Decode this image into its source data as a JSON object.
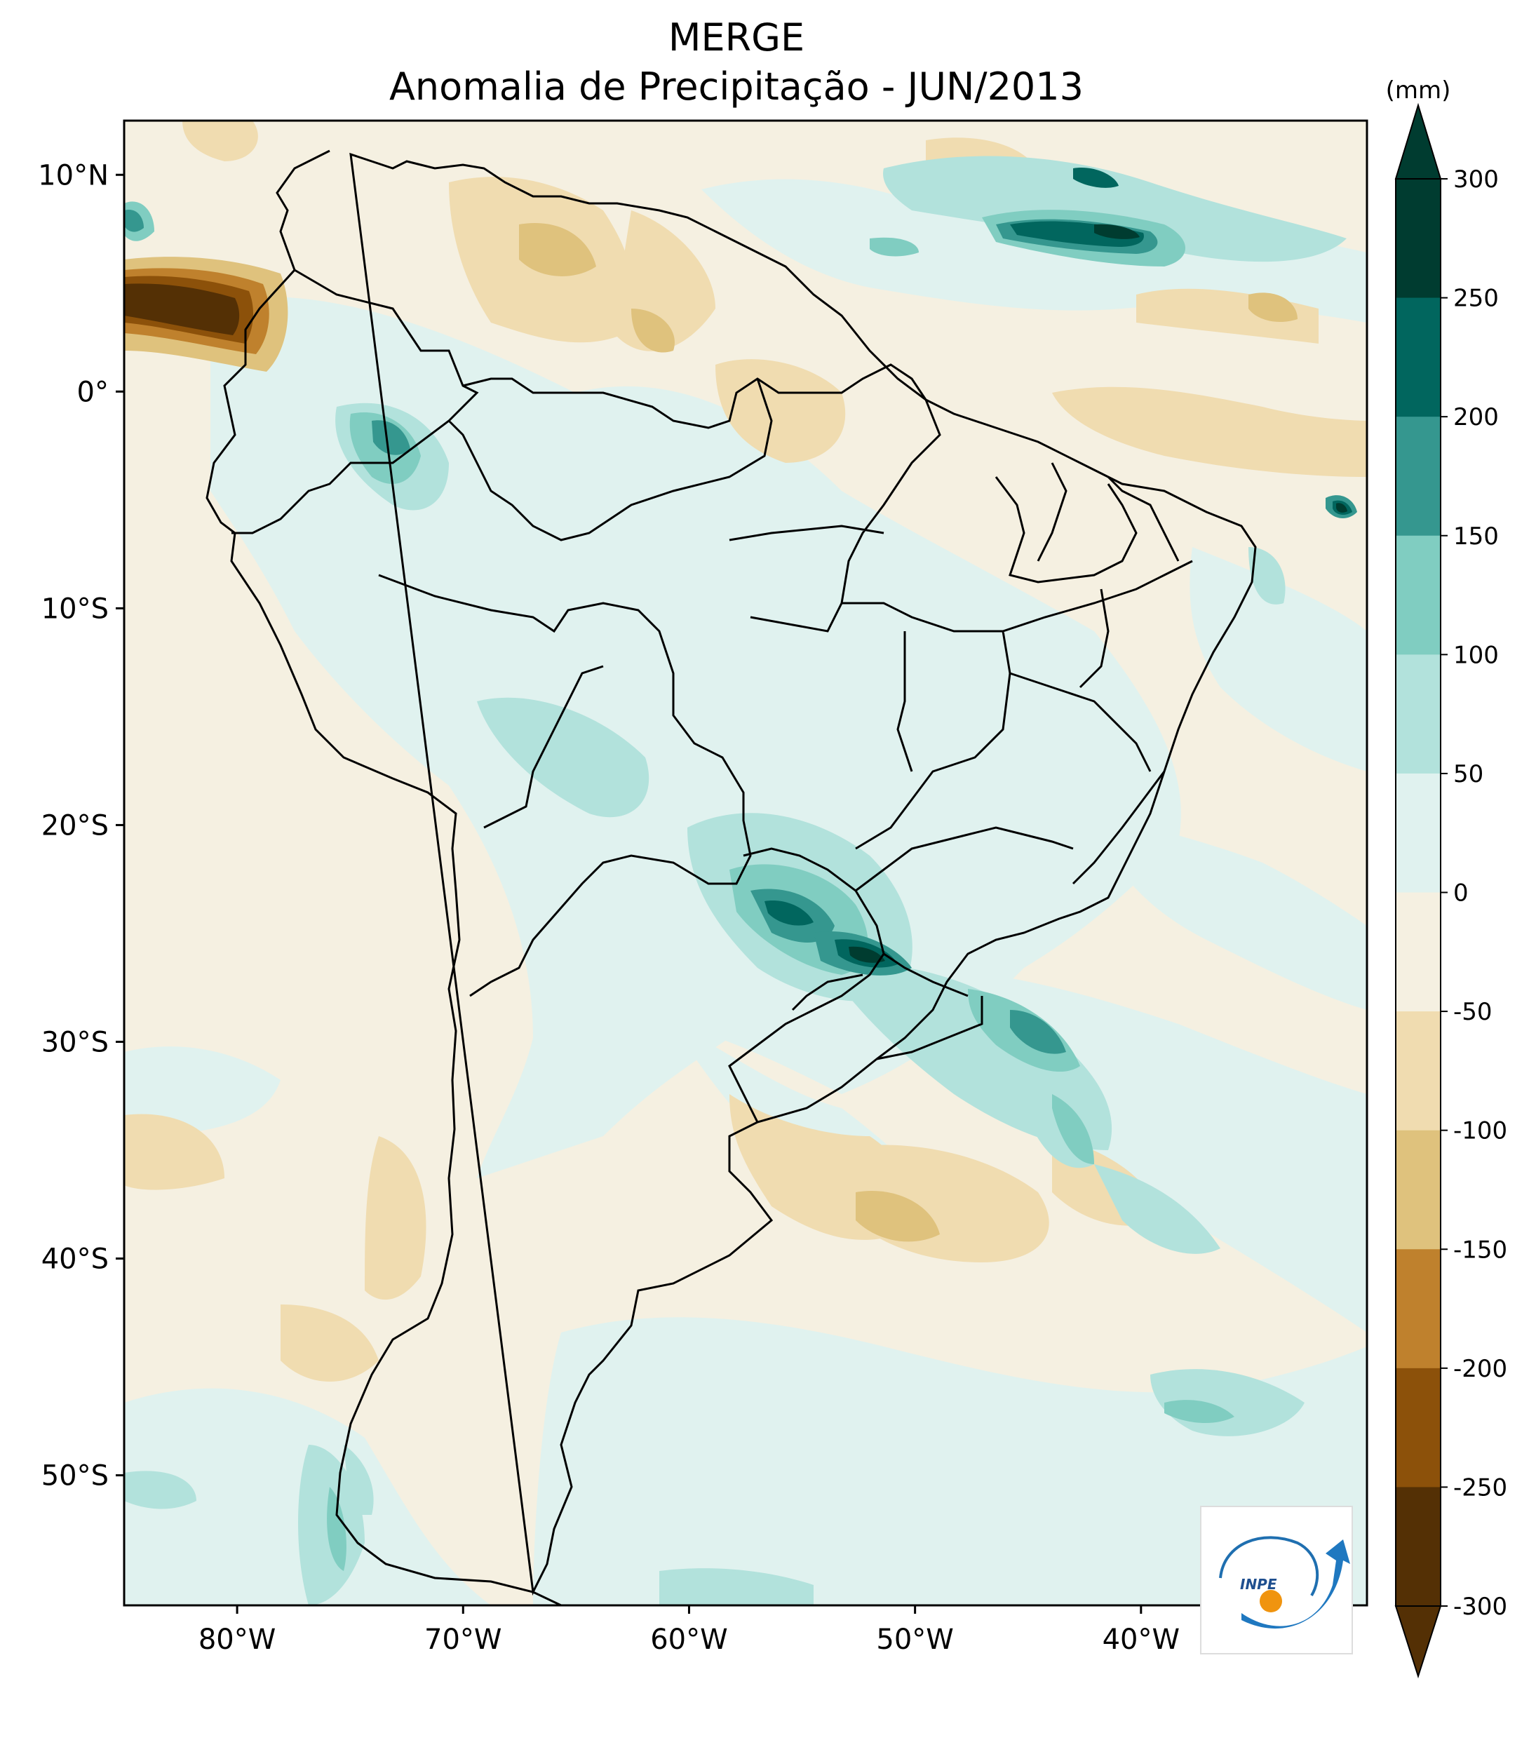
{
  "title": {
    "line1": "MERGE",
    "line2": "Anomalia de Precipitação - JUN/2013"
  },
  "map": {
    "region": "South America",
    "lat_range": [
      -56,
      12.5
    ],
    "lon_range": [
      -85,
      -30
    ],
    "lat_ticks": [
      {
        "value": 10,
        "label": "10°N"
      },
      {
        "value": 0,
        "label": "0°"
      },
      {
        "value": -10,
        "label": "10°S"
      },
      {
        "value": -20,
        "label": "20°S"
      },
      {
        "value": -30,
        "label": "30°S"
      },
      {
        "value": -40,
        "label": "40°S"
      },
      {
        "value": -50,
        "label": "50°S"
      }
    ],
    "lon_ticks": [
      {
        "value": -80,
        "label": "80°W"
      },
      {
        "value": -70,
        "label": "70°W"
      },
      {
        "value": -60,
        "label": "60°W"
      },
      {
        "value": -50,
        "label": "50°W"
      },
      {
        "value": -40,
        "label": "40°W"
      }
    ]
  },
  "colorbar": {
    "unit": "(mm)",
    "levels": [
      300,
      250,
      200,
      150,
      100,
      50,
      0,
      -50,
      -100,
      -150,
      -200,
      -250,
      -300
    ],
    "labels": [
      "300",
      "250",
      "200",
      "150",
      "100",
      "50",
      "0",
      "-50",
      "-100",
      "-150",
      "-200",
      "-250",
      "-300"
    ],
    "colors": [
      "#003c30",
      "#01665e",
      "#35978f",
      "#80cdc1",
      "#b2e2dc",
      "#e0f2ef",
      "#f5f0e1",
      "#f0dcb0",
      "#dfc27d",
      "#bf812d",
      "#8c510a",
      "#543005"
    ],
    "over_color": "#003c30",
    "under_color": "#543005"
  },
  "logo": {
    "text": "INPE"
  }
}
